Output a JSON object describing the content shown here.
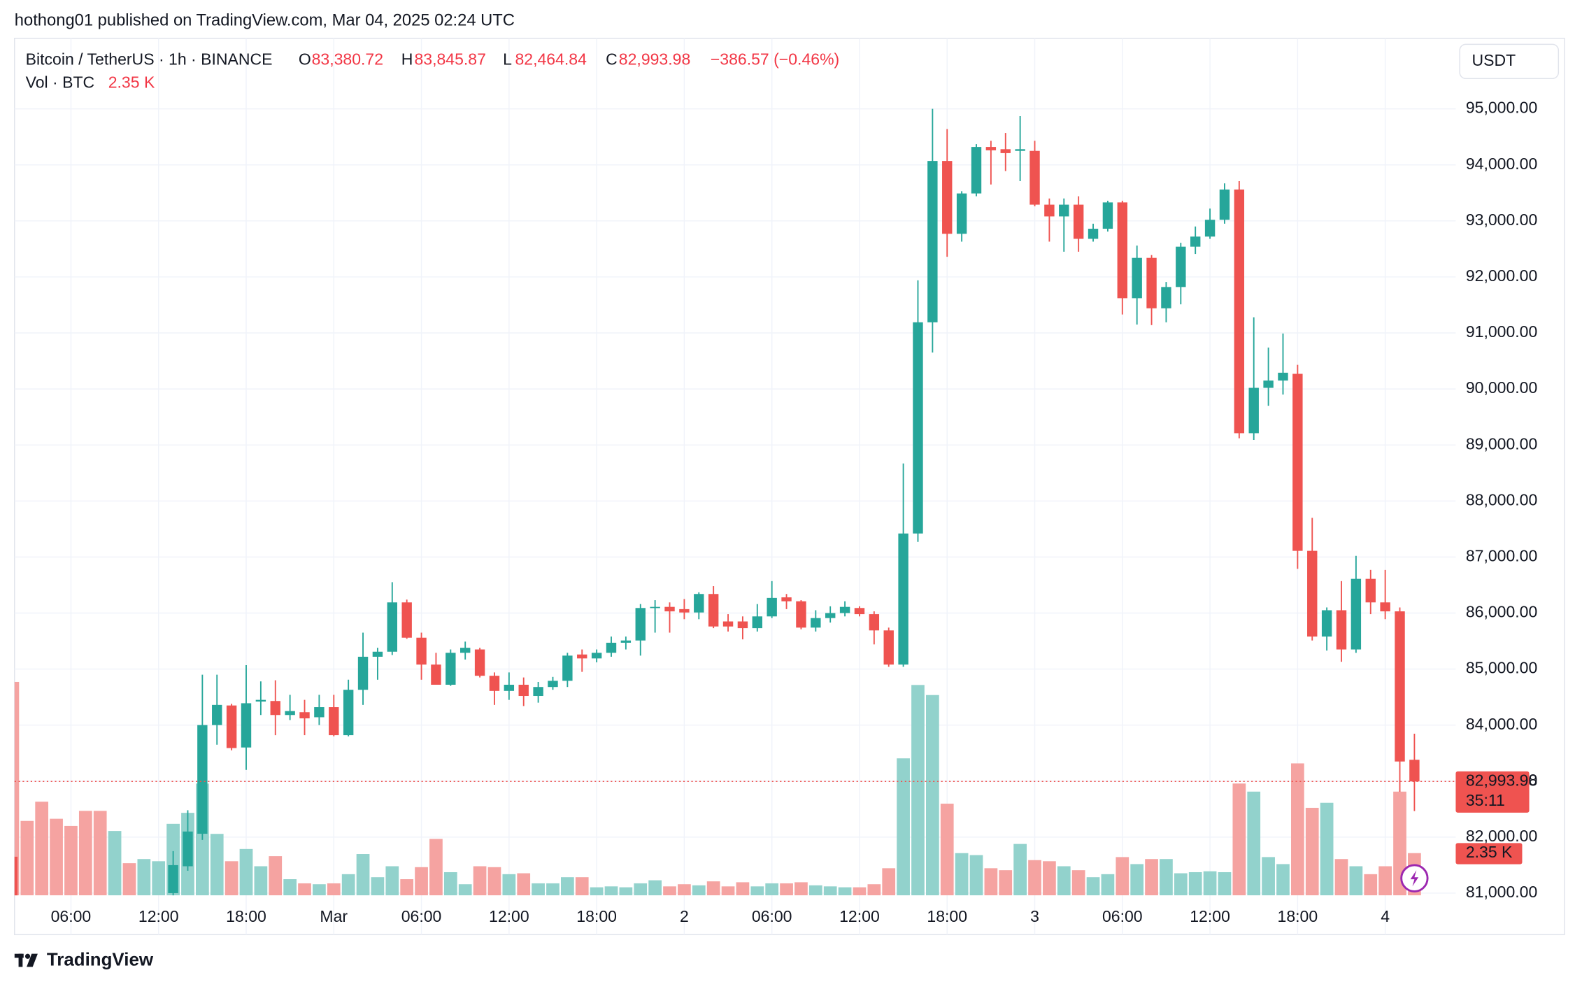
{
  "header": {
    "text": "hothong01 published on TradingView.com, Mar 04, 2025 02:24 UTC"
  },
  "footer": {
    "logo": "TradingView"
  },
  "chart_data": {
    "type": "candlestick",
    "title": "Bitcoin / TetherUS · 1h · BINANCE",
    "currency": "USDT",
    "ohlc_prefixes": [
      "O",
      "H",
      "L",
      "C"
    ],
    "last_candle_labels": {
      "open": "83,380.72",
      "high": "83,845.87",
      "low": "82,464.84",
      "close": "82,993.98",
      "change": "−386.57 (−0.46%)"
    },
    "countdown": "35:11",
    "up_color": "#26a69a",
    "down_color": "#ef5350",
    "grid": true,
    "categories": [
      null,
      null,
      null,
      null,
      "06:00",
      null,
      null,
      null,
      null,
      null,
      "12:00",
      null,
      null,
      null,
      null,
      null,
      "18:00",
      null,
      null,
      null,
      null,
      null,
      "Mar",
      null,
      null,
      null,
      null,
      null,
      "06:00",
      null,
      null,
      null,
      null,
      null,
      "12:00",
      null,
      null,
      null,
      null,
      null,
      "18:00",
      null,
      null,
      null,
      null,
      null,
      "2",
      null,
      null,
      null,
      null,
      null,
      "06:00",
      null,
      null,
      null,
      null,
      null,
      "12:00",
      null,
      null,
      null,
      null,
      null,
      "18:00",
      null,
      null,
      null,
      null,
      null,
      "3",
      null,
      null,
      null,
      null,
      null,
      "06:00",
      null,
      null,
      null,
      null,
      null,
      "12:00",
      null,
      null,
      null,
      null,
      null,
      "18:00",
      null,
      null,
      null,
      null,
      null,
      "4",
      null,
      null
    ],
    "open": [
      81650,
      null,
      null,
      null,
      null,
      null,
      null,
      null,
      null,
      null,
      null,
      81000,
      81480,
      82060,
      84000,
      84350,
      83600,
      84420,
      84430,
      84180,
      84230,
      84140,
      84320,
      83820,
      84630,
      85220,
      85310,
      86190,
      85560,
      85080,
      84720,
      85290,
      85350,
      84880,
      84610,
      84720,
      84520,
      84680,
      84790,
      85260,
      85190,
      85290,
      85470,
      85510,
      86090,
      86110,
      86070,
      86010,
      86340,
      85850,
      85850,
      85730,
      85940,
      86280,
      86210,
      85740,
      85910,
      86000,
      86090,
      85980,
      85690,
      85080,
      87420,
      91190,
      94070,
      92770,
      93490,
      94320,
      94280,
      94250,
      94250,
      93290,
      93080,
      93290,
      92680,
      92860,
      93330,
      91620,
      92340,
      91440,
      91820,
      92540,
      92720,
      93020,
      93560,
      89210,
      90020,
      90150,
      90270,
      87110,
      85580,
      86050,
      85350,
      86610,
      86190,
      86030,
      83380.72
    ],
    "high": [
      81650,
      null,
      null,
      null,
      null,
      null,
      null,
      null,
      null,
      null,
      null,
      81750,
      82480,
      84900,
      84900,
      84380,
      85070,
      84780,
      84800,
      84540,
      84450,
      84540,
      84540,
      84810,
      85650,
      85380,
      86550,
      86240,
      85650,
      85290,
      85350,
      85490,
      85380,
      84940,
      84940,
      84850,
      84770,
      84860,
      85290,
      85350,
      85350,
      85580,
      85580,
      86160,
      86230,
      86190,
      86250,
      86370,
      86480,
      85980,
      85940,
      86160,
      86570,
      86340,
      86230,
      86050,
      86120,
      86210,
      86120,
      86030,
      85740,
      88670,
      91940,
      95000,
      94640,
      93530,
      94370,
      94430,
      94570,
      94870,
      94430,
      93400,
      93400,
      93440,
      92950,
      93360,
      93360,
      92560,
      92390,
      91910,
      92610,
      92900,
      93220,
      93670,
      93710,
      91280,
      90740,
      90990,
      90430,
      87700,
      86100,
      86570,
      87020,
      86770,
      86770,
      86100,
      83845.87
    ],
    "low": [
      80800,
      null,
      null,
      null,
      null,
      null,
      null,
      null,
      null,
      null,
      null,
      80900,
      81400,
      81950,
      83650,
      83550,
      83200,
      84180,
      83820,
      84090,
      83820,
      84000,
      83800,
      83800,
      84360,
      84810,
      85250,
      85540,
      84810,
      84720,
      84700,
      85170,
      84850,
      84360,
      84450,
      84340,
      84400,
      84630,
      84680,
      84950,
      85120,
      85220,
      85350,
      85240,
      85650,
      85650,
      85890,
      85890,
      85730,
      85670,
      85530,
      85670,
      85910,
      86070,
      85710,
      85670,
      85830,
      85940,
      85940,
      85440,
      85040,
      85040,
      87270,
      90650,
      92360,
      92630,
      93440,
      93650,
      93890,
      93710,
      93260,
      92630,
      92450,
      92450,
      92630,
      92810,
      91330,
      91150,
      91140,
      91190,
      91510,
      92410,
      92680,
      92950,
      89120,
      89090,
      89700,
      89900,
      86790,
      85510,
      85330,
      85130,
      85290,
      85980,
      85890,
      82810,
      82464.84
    ],
    "close": [
      80900,
      null,
      null,
      null,
      null,
      null,
      null,
      null,
      null,
      null,
      null,
      81500,
      82100,
      84000,
      84360,
      83590,
      84390,
      84450,
      84180,
      84250,
      84120,
      84320,
      83820,
      84630,
      85220,
      85310,
      86190,
      85560,
      85080,
      84720,
      85290,
      85380,
      84880,
      84610,
      84720,
      84520,
      84680,
      84790,
      85240,
      85190,
      85290,
      85470,
      85510,
      86090,
      86110,
      86030,
      86010,
      86340,
      85760,
      85760,
      85730,
      85940,
      86270,
      86210,
      85740,
      85910,
      86000,
      86110,
      85980,
      85690,
      85080,
      87420,
      91190,
      94070,
      92770,
      93490,
      94320,
      94260,
      94210,
      94280,
      93290,
      93080,
      93290,
      92680,
      92860,
      93330,
      91620,
      92340,
      91440,
      91820,
      92540,
      92720,
      93020,
      93560,
      89210,
      90020,
      90150,
      90290,
      87110,
      85580,
      86050,
      85350,
      86610,
      86190,
      86030,
      83350,
      82993.98
    ],
    "series": [
      {
        "name": "Vol · BTC",
        "axis": "y2",
        "values": [
          11870,
          4140,
          5210,
          4260,
          3860,
          4700,
          4700,
          3580,
          1790,
          2020,
          1900,
          3980,
          4590,
          6220,
          3420,
          1900,
          2580,
          1620,
          2180,
          900,
          670,
          620,
          670,
          1180,
          2300,
          1010,
          1620,
          900,
          1570,
          3140,
          1290,
          620,
          1620,
          1570,
          1180,
          1230,
          670,
          670,
          1010,
          1010,
          450,
          500,
          450,
          670,
          840,
          500,
          620,
          560,
          780,
          500,
          730,
          500,
          670,
          670,
          730,
          560,
          500,
          450,
          450,
          620,
          1510,
          7620,
          11700,
          11140,
          5100,
          2350,
          2240,
          1510,
          1400,
          2860,
          1960,
          1900,
          1620,
          1400,
          1010,
          1180,
          2130,
          1740,
          2020,
          2020,
          1230,
          1290,
          1340,
          1290,
          6220,
          5770,
          2130,
          1740,
          7340,
          4870,
          5150,
          2020,
          1620,
          1180,
          1620,
          5770,
          2350
        ],
        "value_labels": {
          "96": "2.35 K"
        },
        "colors": [
          "#f5a3a1",
          "#f5a3a1",
          "#f5a3a1",
          "#f5a3a1",
          "#f5a3a1",
          "#f5a3a1",
          "#f5a3a1",
          "#92d2cc",
          "#f5a3a1",
          "#92d2cc",
          "#92d2cc",
          "#92d2cc",
          "#92d2cc",
          "#92d2cc",
          "#92d2cc",
          "#f5a3a1",
          "#92d2cc",
          "#92d2cc",
          "#f5a3a1",
          "#92d2cc",
          "#f5a3a1",
          "#92d2cc",
          "#f5a3a1",
          "#92d2cc",
          "#92d2cc",
          "#92d2cc",
          "#92d2cc",
          "#f5a3a1",
          "#f5a3a1",
          "#f5a3a1",
          "#92d2cc",
          "#92d2cc",
          "#f5a3a1",
          "#f5a3a1",
          "#92d2cc",
          "#f5a3a1",
          "#92d2cc",
          "#92d2cc",
          "#92d2cc",
          "#f5a3a1",
          "#92d2cc",
          "#92d2cc",
          "#92d2cc",
          "#92d2cc",
          "#92d2cc",
          "#f5a3a1",
          "#f5a3a1",
          "#92d2cc",
          "#f5a3a1",
          "#f5a3a1",
          "#f5a3a1",
          "#92d2cc",
          "#92d2cc",
          "#f5a3a1",
          "#f5a3a1",
          "#92d2cc",
          "#92d2cc",
          "#92d2cc",
          "#f5a3a1",
          "#f5a3a1",
          "#f5a3a1",
          "#92d2cc",
          "#92d2cc",
          "#92d2cc",
          "#f5a3a1",
          "#92d2cc",
          "#92d2cc",
          "#f5a3a1",
          "#f5a3a1",
          "#92d2cc",
          "#f5a3a1",
          "#f5a3a1",
          "#92d2cc",
          "#f5a3a1",
          "#92d2cc",
          "#92d2cc",
          "#f5a3a1",
          "#92d2cc",
          "#f5a3a1",
          "#92d2cc",
          "#92d2cc",
          "#92d2cc",
          "#92d2cc",
          "#92d2cc",
          "#f5a3a1",
          "#92d2cc",
          "#92d2cc",
          "#92d2cc",
          "#f5a3a1",
          "#f5a3a1",
          "#92d2cc",
          "#f5a3a1",
          "#92d2cc",
          "#f5a3a1",
          "#f5a3a1",
          "#f5a3a1",
          "#f5a3a1"
        ]
      }
    ],
    "ylim": [
      80960,
      96260
    ],
    "yticks": [
      {
        "value": 81000,
        "label": "81,000.00"
      },
      {
        "value": 82000,
        "label": "82,000.00"
      },
      {
        "value": 83000,
        "label": "83,000.00"
      },
      {
        "value": 84000,
        "label": "84,000.00"
      },
      {
        "value": 85000,
        "label": "85,000.00"
      },
      {
        "value": 86000,
        "label": "86,000.00"
      },
      {
        "value": 87000,
        "label": "87,000.00"
      },
      {
        "value": 88000,
        "label": "88,000.00"
      },
      {
        "value": 89000,
        "label": "89,000.00"
      },
      {
        "value": 90000,
        "label": "90,000.00"
      },
      {
        "value": 91000,
        "label": "91,000.00"
      },
      {
        "value": 92000,
        "label": "92,000.00"
      },
      {
        "value": 93000,
        "label": "93,000.00"
      },
      {
        "value": 94000,
        "label": "94,000.00"
      },
      {
        "value": 95000,
        "label": "95,000.00"
      }
    ],
    "y2lim": [
      0,
      47660
    ]
  }
}
